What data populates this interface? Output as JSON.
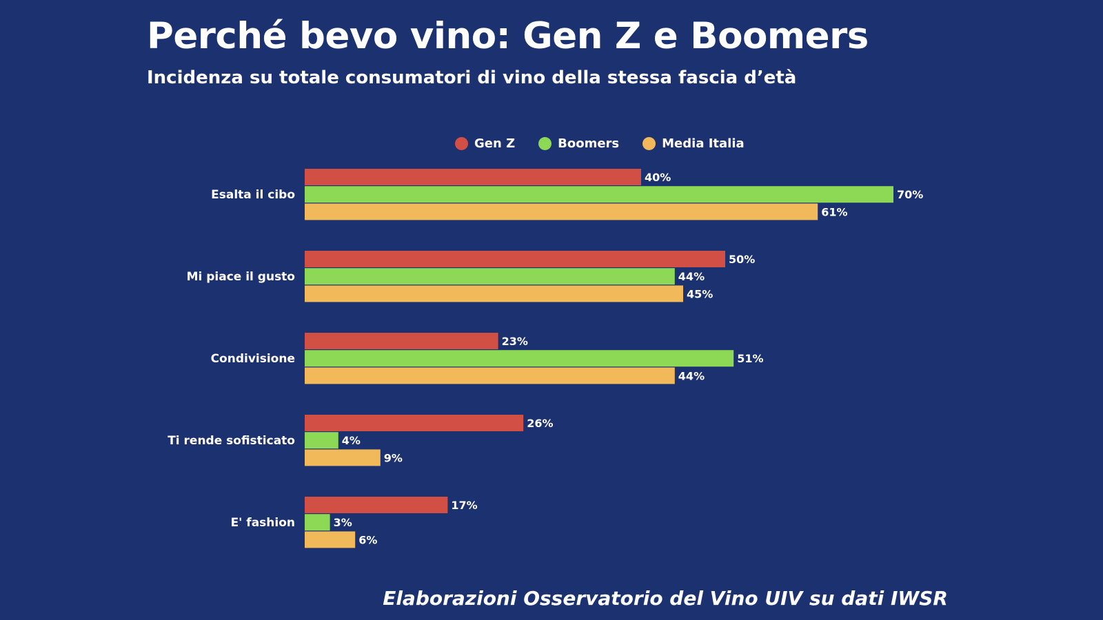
{
  "title": "Perché bevo vino: Gen Z e Boomers",
  "subtitle": "Incidenza su totale consumatori di vino della stessa fascia d’età",
  "footer": "Elaborazioni Osservatorio del Vino UIV su dati IWSR",
  "chart_data": {
    "type": "bar",
    "orientation": "horizontal",
    "categories": [
      "Esalta il cibo",
      "Mi piace il gusto",
      "Condivisione",
      "Ti rende sofisticato",
      "E' fashion"
    ],
    "series": [
      {
        "name": "Gen Z",
        "color": "#d24f45",
        "values": [
          40,
          50,
          23,
          26,
          17
        ],
        "labels": [
          "40%",
          "50%",
          "23%",
          "26%",
          "17%"
        ]
      },
      {
        "name": "Boomers",
        "color": "#8dd854",
        "values": [
          70,
          44,
          51,
          4,
          3
        ],
        "labels": [
          "70%",
          "44%",
          "51%",
          "4%",
          "3%"
        ]
      },
      {
        "name": "Media Italia",
        "color": "#f2b95a",
        "values": [
          61,
          45,
          44,
          9,
          6
        ],
        "labels": [
          "61%",
          "45%",
          "44%",
          "9%",
          "6%"
        ]
      }
    ],
    "unit": "%",
    "legend": "top",
    "grid": false,
    "xlim": [
      0,
      70
    ]
  }
}
